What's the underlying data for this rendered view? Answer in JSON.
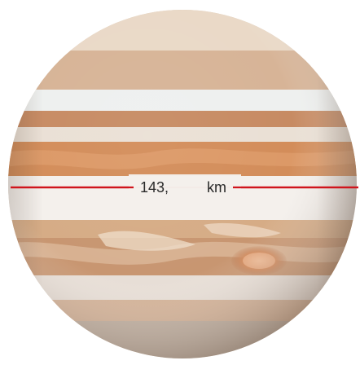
{
  "image": {
    "subject": "Jupiter"
  },
  "diameter_measurement": {
    "value_text": "143,",
    "unit_text": "km",
    "line_color": "#d0141c"
  }
}
